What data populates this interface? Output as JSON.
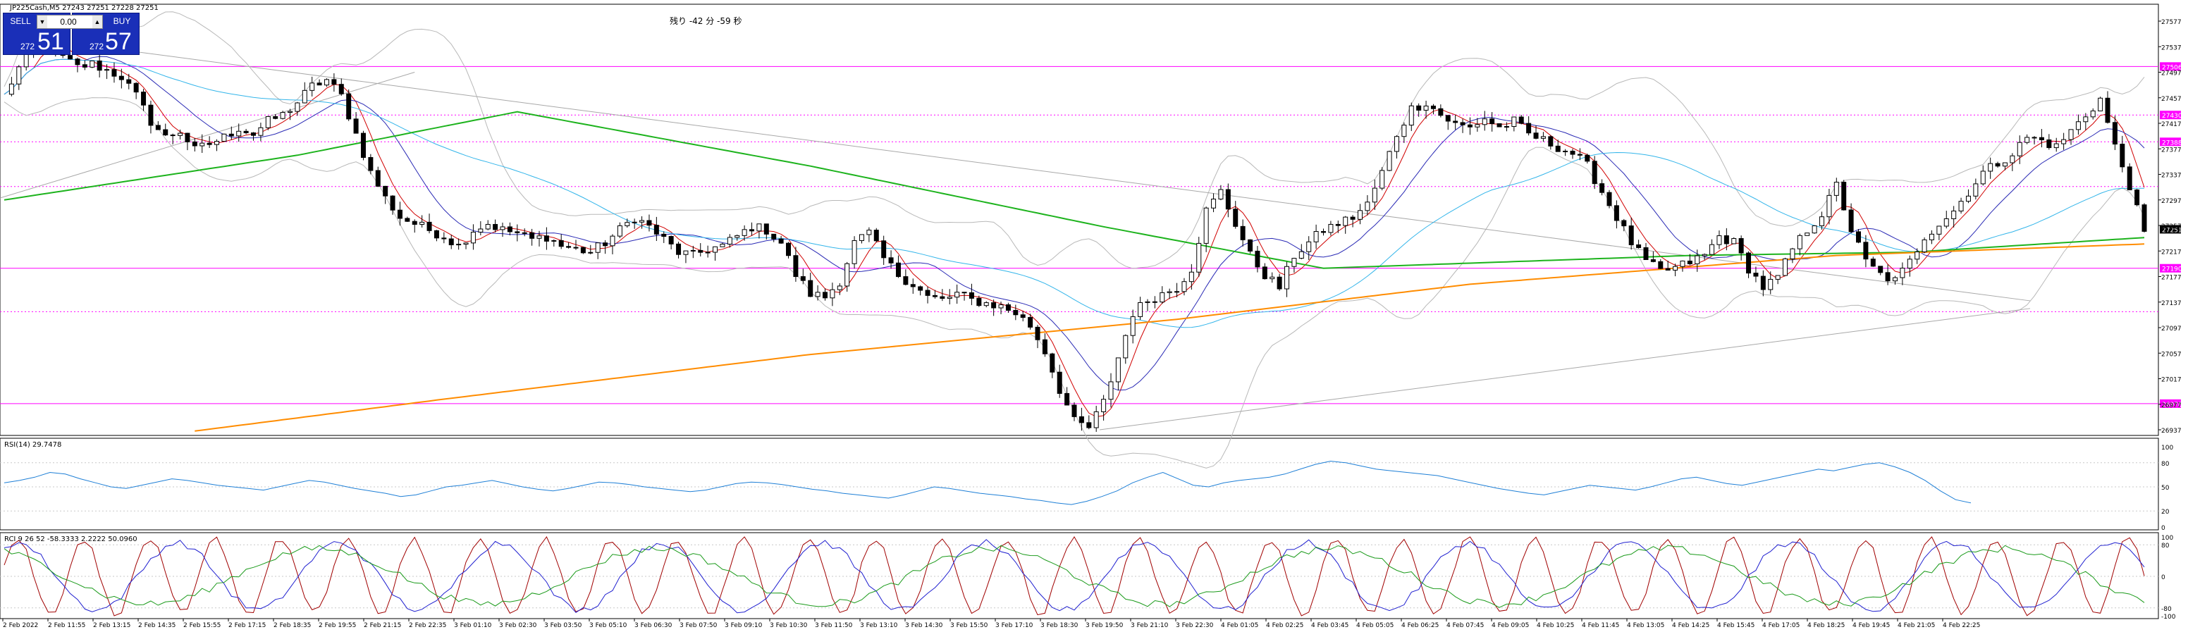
{
  "header": {
    "symbol_line": "JP225Cash,M5  27243 27251 27228 27251",
    "countdown": "残り -42 分 -59 秒"
  },
  "trade_panel": {
    "sell_label": "SELL",
    "buy_label": "BUY",
    "lot": "0.00",
    "sell_small": "272",
    "sell_big": "51",
    "buy_small": "272",
    "buy_big": "57"
  },
  "colors": {
    "candle": "#000000",
    "ma_orange": "#ff8c00",
    "ma_green": "#1db31d",
    "ma_blue": "#2a2ab5",
    "ma_skyblue": "#33b5ea",
    "ma_red": "#d00000",
    "bands": "#b8b8b8",
    "hlines": "#ff00ff",
    "rsi": "#1e7fd6",
    "rci_fast": "#a00000",
    "rci_mid": "#2020d0",
    "rci_slow": "#1a9a1a",
    "current_price_bg": "#000000"
  },
  "chart_data": [
    {
      "type": "candlestick",
      "symbol": "JP225Cash",
      "timeframe": "M5",
      "ylim": [
        26937,
        27577
      ],
      "y_ticks": [
        "27577",
        "27537",
        "27497",
        "27457",
        "27417",
        "27377",
        "27337",
        "27297",
        "27257",
        "27217",
        "27177",
        "27137",
        "27097",
        "27057",
        "27017",
        "26977",
        "26937"
      ],
      "x_ticks": [
        "2 Feb 2022",
        "2 Feb 11:55",
        "2 Feb 13:15",
        "2 Feb 14:35",
        "2 Feb 15:55",
        "2 Feb 17:15",
        "2 Feb 18:35",
        "2 Feb 19:55",
        "2 Feb 21:15",
        "2 Feb 22:35",
        "3 Feb 01:10",
        "3 Feb 02:30",
        "3 Feb 03:50",
        "3 Feb 05:10",
        "3 Feb 06:30",
        "3 Feb 07:50",
        "3 Feb 09:10",
        "3 Feb 10:30",
        "3 Feb 11:50",
        "3 Feb 13:10",
        "3 Feb 14:30",
        "3 Feb 15:50",
        "3 Feb 17:10",
        "3 Feb 18:30",
        "3 Feb 19:50",
        "3 Feb 21:10",
        "3 Feb 22:30",
        "4 Feb 01:05",
        "4 Feb 02:25",
        "4 Feb 03:45",
        "4 Feb 05:05",
        "4 Feb 06:25",
        "4 Feb 07:45",
        "4 Feb 09:05",
        "4 Feb 10:25",
        "4 Feb 11:45",
        "4 Feb 13:05",
        "4 Feb 14:25",
        "4 Feb 15:45",
        "4 Feb 17:05",
        "4 Feb 18:25",
        "4 Feb 19:45",
        "4 Feb 21:05",
        "4 Feb 22:25"
      ],
      "price_path": [
        [
          0,
          27460
        ],
        [
          3,
          27525
        ],
        [
          5,
          27545
        ],
        [
          8,
          27520
        ],
        [
          10,
          27505
        ],
        [
          12,
          27510
        ],
        [
          14,
          27500
        ],
        [
          16,
          27490
        ],
        [
          18,
          27460
        ],
        [
          20,
          27420
        ],
        [
          22,
          27395
        ],
        [
          24,
          27405
        ],
        [
          26,
          27375
        ],
        [
          28,
          27385
        ],
        [
          30,
          27395
        ],
        [
          32,
          27410
        ],
        [
          34,
          27400
        ],
        [
          36,
          27420
        ],
        [
          38,
          27430
        ],
        [
          40,
          27450
        ],
        [
          42,
          27475
        ],
        [
          44,
          27485
        ],
        [
          46,
          27460
        ],
        [
          48,
          27400
        ],
        [
          50,
          27340
        ],
        [
          52,
          27300
        ],
        [
          54,
          27270
        ],
        [
          56,
          27260
        ],
        [
          58,
          27250
        ],
        [
          60,
          27240
        ],
        [
          62,
          27225
        ],
        [
          64,
          27250
        ],
        [
          66,
          27260
        ],
        [
          68,
          27250
        ],
        [
          70,
          27245
        ],
        [
          72,
          27235
        ],
        [
          74,
          27240
        ],
        [
          76,
          27225
        ],
        [
          78,
          27220
        ],
        [
          80,
          27215
        ],
        [
          82,
          27230
        ],
        [
          84,
          27250
        ],
        [
          86,
          27270
        ],
        [
          88,
          27255
        ],
        [
          90,
          27235
        ],
        [
          92,
          27215
        ],
        [
          94,
          27210
        ],
        [
          96,
          27220
        ],
        [
          98,
          27225
        ],
        [
          100,
          27240
        ],
        [
          102,
          27255
        ],
        [
          104,
          27250
        ],
        [
          106,
          27230
        ],
        [
          108,
          27180
        ],
        [
          110,
          27150
        ],
        [
          112,
          27145
        ],
        [
          114,
          27170
        ],
        [
          116,
          27230
        ],
        [
          118,
          27245
        ],
        [
          120,
          27205
        ],
        [
          122,
          27180
        ],
        [
          124,
          27165
        ],
        [
          126,
          27145
        ],
        [
          128,
          27140
        ],
        [
          130,
          27150
        ],
        [
          132,
          27140
        ],
        [
          134,
          27135
        ],
        [
          136,
          27130
        ],
        [
          138,
          27120
        ],
        [
          140,
          27100
        ],
        [
          142,
          27060
        ],
        [
          144,
          27000
        ],
        [
          146,
          26950
        ],
        [
          148,
          26940
        ],
        [
          150,
          26980
        ],
        [
          152,
          27050
        ],
        [
          154,
          27120
        ],
        [
          156,
          27140
        ],
        [
          158,
          27150
        ],
        [
          160,
          27160
        ],
        [
          162,
          27190
        ],
        [
          164,
          27280
        ],
        [
          166,
          27310
        ],
        [
          168,
          27260
        ],
        [
          170,
          27210
        ],
        [
          172,
          27180
        ],
        [
          174,
          27160
        ],
        [
          176,
          27210
        ],
        [
          178,
          27230
        ],
        [
          180,
          27250
        ],
        [
          182,
          27260
        ],
        [
          184,
          27270
        ],
        [
          186,
          27290
        ],
        [
          188,
          27340
        ],
        [
          190,
          27400
        ],
        [
          192,
          27440
        ],
        [
          194,
          27450
        ],
        [
          196,
          27430
        ],
        [
          198,
          27415
        ],
        [
          200,
          27410
        ],
        [
          202,
          27425
        ],
        [
          204,
          27410
        ],
        [
          206,
          27420
        ],
        [
          208,
          27400
        ],
        [
          210,
          27390
        ],
        [
          212,
          27380
        ],
        [
          214,
          27370
        ],
        [
          216,
          27350
        ],
        [
          218,
          27310
        ],
        [
          220,
          27270
        ],
        [
          222,
          27230
        ],
        [
          224,
          27200
        ],
        [
          226,
          27185
        ],
        [
          228,
          27190
        ],
        [
          230,
          27200
        ],
        [
          232,
          27210
        ],
        [
          234,
          27240
        ],
        [
          236,
          27230
        ],
        [
          238,
          27190
        ],
        [
          240,
          27160
        ],
        [
          242,
          27175
        ],
        [
          244,
          27220
        ],
        [
          246,
          27250
        ],
        [
          248,
          27275
        ],
        [
          250,
          27320
        ],
        [
          252,
          27250
        ],
        [
          254,
          27200
        ],
        [
          256,
          27180
        ],
        [
          258,
          27170
        ],
        [
          260,
          27200
        ],
        [
          262,
          27240
        ],
        [
          264,
          27260
        ],
        [
          266,
          27280
        ],
        [
          268,
          27310
        ],
        [
          270,
          27340
        ],
        [
          272,
          27355
        ],
        [
          274,
          27370
        ],
        [
          276,
          27395
        ],
        [
          278,
          27390
        ],
        [
          280,
          27380
        ],
        [
          282,
          27405
        ],
        [
          284,
          27430
        ],
        [
          286,
          27455
        ],
        [
          288,
          27380
        ],
        [
          290,
          27320
        ],
        [
          292,
          27243
        ]
      ],
      "current_price": "27251",
      "horizontal_lines": [
        {
          "label": "27506",
          "price": 27506,
          "style": "solid"
        },
        {
          "label": "27430",
          "price": 27430,
          "style": "dotted"
        },
        {
          "label": "27388",
          "price": 27388,
          "style": "dotted"
        },
        {
          "label": "",
          "price": 27318,
          "style": "dotted"
        },
        {
          "label": "27190",
          "price": 27190,
          "style": "solid"
        },
        {
          "label": "",
          "price": 27122,
          "style": "dotted"
        },
        {
          "label": "26978",
          "price": 26978,
          "style": "solid"
        }
      ]
    },
    {
      "type": "line",
      "indicator": "RSI",
      "title": "RSI(14) 29.7478",
      "ylim": [
        0,
        100
      ],
      "y_ticks": [
        "100",
        "80",
        "50",
        "20",
        "0"
      ],
      "series": [
        {
          "values": [
            55,
            58,
            62,
            68,
            66,
            60,
            55,
            50,
            48,
            52,
            56,
            60,
            58,
            55,
            52,
            50,
            48,
            46,
            50,
            54,
            58,
            56,
            52,
            48,
            45,
            42,
            38,
            40,
            45,
            50,
            52,
            55,
            58,
            54,
            50,
            47,
            45,
            48,
            52,
            56,
            55,
            53,
            50,
            48,
            46,
            44,
            46,
            50,
            54,
            56,
            55,
            53,
            50,
            47,
            45,
            42,
            40,
            38,
            36,
            40,
            45,
            50,
            48,
            45,
            42,
            40,
            38,
            35,
            33,
            30,
            28,
            32,
            38,
            45,
            55,
            62,
            68,
            60,
            52,
            50,
            55,
            58,
            60,
            62,
            66,
            72,
            78,
            82,
            80,
            76,
            72,
            70,
            68,
            66,
            64,
            60,
            56,
            52,
            48,
            45,
            42,
            40,
            44,
            48,
            52,
            50,
            48,
            46,
            50,
            55,
            60,
            62,
            58,
            54,
            52,
            56,
            60,
            64,
            68,
            72,
            70,
            74,
            78,
            80,
            75,
            68,
            58,
            45,
            34,
            30
          ]
        }
      ]
    },
    {
      "type": "line",
      "indicator": "RCI",
      "title": "RCI 9 26 52  -58.3333 2.2222 50.0960",
      "ylim": [
        -100,
        100
      ],
      "y_ticks": [
        "100",
        "80",
        "0",
        "-80",
        "-100"
      ]
    }
  ]
}
